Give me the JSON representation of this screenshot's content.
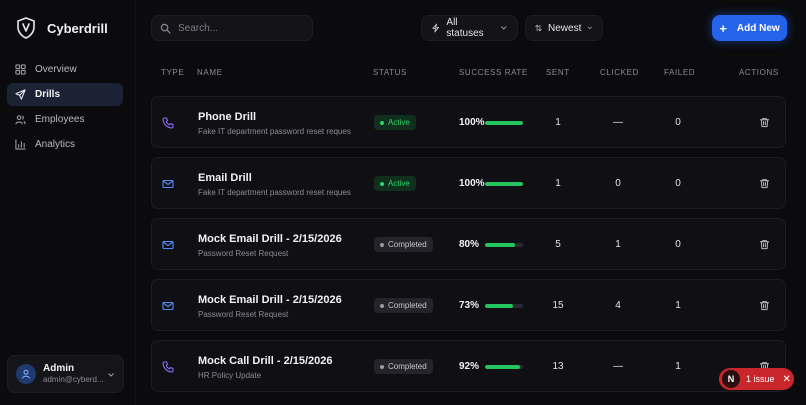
{
  "brand": {
    "name": "Cyberdrill"
  },
  "sidebar": {
    "items": [
      {
        "label": "Overview",
        "icon": "grid-icon"
      },
      {
        "label": "Drills",
        "icon": "send-icon",
        "active": true
      },
      {
        "label": "Employees",
        "icon": "users-icon"
      },
      {
        "label": "Analytics",
        "icon": "bar-chart-icon"
      }
    ],
    "user": {
      "name": "Admin",
      "email": "admin@cyberd..."
    }
  },
  "topbar": {
    "search_placeholder": "Search...",
    "status_filter": "All statuses",
    "sort": "Newest",
    "add_label": "Add New",
    "accent": "#2563eb"
  },
  "table": {
    "headers": {
      "type": "TYPE",
      "name": "NAME",
      "status": "STATUS",
      "rate": "SUCCESS RATE",
      "sent": "SENT",
      "clicked": "CLICKED",
      "failed": "FAILED",
      "actions": "ACTIONS"
    },
    "rows": [
      {
        "type": "phone-icon",
        "name": "Phone Drill",
        "desc": "Fake IT department password reset reques",
        "status": "Active",
        "status_kind": "active",
        "rate_label": "100%",
        "rate": 1.0,
        "sent": "1",
        "clicked": "—",
        "failed": "0"
      },
      {
        "type": "mail-icon",
        "name": "Email Drill",
        "desc": "Fake IT department password reset reques",
        "status": "Active",
        "status_kind": "active",
        "rate_label": "100%",
        "rate": 1.0,
        "sent": "1",
        "clicked": "0",
        "failed": "0"
      },
      {
        "type": "mail-icon",
        "name": "Mock Email Drill - 2/15/2026",
        "desc": "Password Reset Request",
        "status": "Completed",
        "status_kind": "completed",
        "rate_label": "80%",
        "rate": 0.8,
        "sent": "5",
        "clicked": "1",
        "failed": "0"
      },
      {
        "type": "mail-icon",
        "name": "Mock Email Drill - 2/15/2026",
        "desc": "Password Reset Request",
        "status": "Completed",
        "status_kind": "completed",
        "rate_label": "73%",
        "rate": 0.73,
        "sent": "15",
        "clicked": "4",
        "failed": "1"
      },
      {
        "type": "phone-icon",
        "name": "Mock Call Drill - 2/15/2026",
        "desc": "HR Policy Update",
        "status": "Completed",
        "status_kind": "completed",
        "rate_label": "92%",
        "rate": 0.92,
        "sent": "13",
        "clicked": "—",
        "failed": "1"
      }
    ]
  },
  "issue_toast": {
    "logo": "N",
    "label": "1 issue",
    "close": "✕",
    "color": "#c9262c"
  }
}
